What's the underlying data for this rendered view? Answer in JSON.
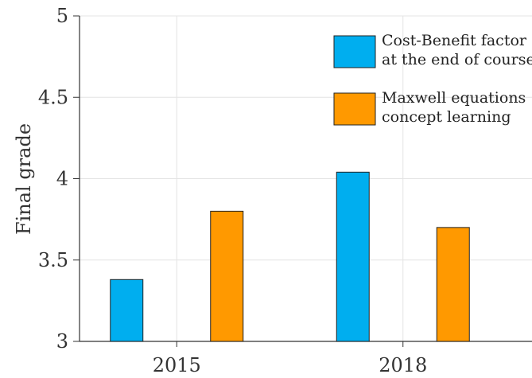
{
  "chart_data": {
    "type": "bar",
    "categories": [
      "2015",
      "2018"
    ],
    "series": [
      {
        "name": "Cost-Benefit factor\nat the end of course",
        "values": [
          3.38,
          4.04
        ],
        "color": "#00AEEF"
      },
      {
        "name": "Maxwell equations\nconcept learning",
        "values": [
          3.8,
          3.7
        ],
        "color": "#FF9900"
      }
    ],
    "title": "",
    "xlabel": "",
    "ylabel": "Final grade",
    "ylim": [
      3,
      5
    ],
    "yticks": [
      "3",
      "3.5",
      "4",
      "4.5",
      "5"
    ],
    "grid": true,
    "legend_position": "top-right"
  }
}
